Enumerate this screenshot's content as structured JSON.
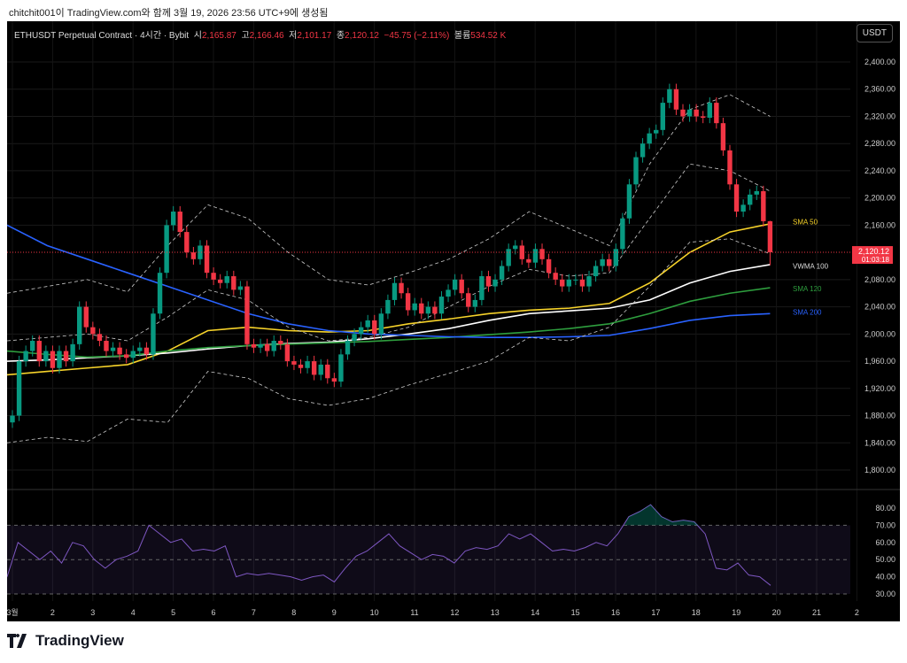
{
  "caption": "chitchit001이 TradingView.com와 함께 3월 19, 2026 23:56 UTC+9에 생성됨",
  "legend": {
    "symbol": "ETHUSDT Perpetual Contract · 4시간 · Bybit",
    "o_label": "시",
    "o": "2,165.87",
    "h_label": "고",
    "h": "2,166.46",
    "l_label": "저",
    "l": "2,101.17",
    "c_label": "종",
    "c": "2,120.12",
    "change": "−45.75 (−2.11%)",
    "vol_label": "볼륨",
    "vol": "534.52 K"
  },
  "currency_button": "USDT",
  "brand": "TradingView",
  "price_label": {
    "price": "2,120.12",
    "countdown": "01:03:18"
  },
  "colors": {
    "up": "#089981",
    "down": "#f23645",
    "sma50": "#f7d32a",
    "vwma100": "#ffffff",
    "sma120": "#2e9e3e",
    "sma200": "#2962ff",
    "bb": "#cccccc",
    "rsi": "#7e57c2"
  },
  "chart_data": [
    {
      "type": "candlestick",
      "interval": "4시간",
      "ylim": [
        1780,
        2420
      ],
      "y_ticks": [
        "2,400.00",
        "2,360.00",
        "2,320.00",
        "2,280.00",
        "2,240.00",
        "2,200.00",
        "2,160.00",
        "2,080.00",
        "2,040.00",
        "2,000.00",
        "1,960.00",
        "1,920.00",
        "1,880.00",
        "1,840.00",
        "1,800.00"
      ],
      "y_tick_values": [
        2400,
        2360,
        2320,
        2280,
        2240,
        2200,
        2160,
        2080,
        2040,
        2000,
        1960,
        1920,
        1880,
        1840,
        1800
      ],
      "x_ticks": [
        "3월",
        "2",
        "3",
        "4",
        "5",
        "6",
        "7",
        "8",
        "9",
        "10",
        "11",
        "12",
        "13",
        "14",
        "15",
        "16",
        "17",
        "18",
        "19",
        "20",
        "21",
        "2"
      ],
      "first_open": 1870,
      "closes": [
        1880,
        1960,
        1975,
        1990,
        1960,
        1975,
        1950,
        1975,
        1960,
        1985,
        2040,
        2010,
        2000,
        1990,
        1975,
        1980,
        1970,
        1965,
        1975,
        1980,
        1970,
        2030,
        2090,
        2160,
        2180,
        2150,
        2120,
        2110,
        2130,
        2090,
        2080,
        2075,
        2085,
        2065,
        2070,
        1985,
        1980,
        1985,
        1975,
        1990,
        1985,
        1960,
        1955,
        1950,
        1960,
        1940,
        1955,
        1935,
        1930,
        1970,
        1990,
        2000,
        2010,
        2020,
        2000,
        2030,
        2050,
        2075,
        2060,
        2035,
        2045,
        2030,
        2040,
        2030,
        2055,
        2065,
        2080,
        2060,
        2040,
        2050,
        2085,
        2070,
        2080,
        2100,
        2125,
        2130,
        2110,
        2105,
        2125,
        2110,
        2090,
        2080,
        2070,
        2080,
        2080,
        2070,
        2085,
        2100,
        2110,
        2100,
        2125,
        2170,
        2220,
        2260,
        2280,
        2295,
        2300,
        2340,
        2360,
        2330,
        2320,
        2330,
        2320,
        2318,
        2340,
        2310,
        2270,
        2220,
        2180,
        2190,
        2205,
        2210,
        2165.87,
        2120.12
      ],
      "last_candle": {
        "open": 2165.87,
        "high": 2166.46,
        "low": 2101.17,
        "close": 2120.12
      },
      "indicators": [
        {
          "name": "SMA 50",
          "color_key": "sma50",
          "daily": [
            1940,
            1945,
            1950,
            1955,
            1975,
            2005,
            2010,
            2005,
            2003,
            2005,
            2015,
            2022,
            2030,
            2035,
            2038,
            2045,
            2075,
            2120,
            2150,
            2162
          ]
        },
        {
          "name": "VWMA 100",
          "color_key": "vwma100",
          "daily": [
            1960,
            1962,
            1965,
            1968,
            1972,
            1978,
            1983,
            1986,
            1988,
            1993,
            2000,
            2008,
            2020,
            2030,
            2034,
            2038,
            2050,
            2075,
            2092,
            2102
          ]
        },
        {
          "name": "SMA 120",
          "color_key": "sma120",
          "daily": [
            1975,
            1970,
            1966,
            1968,
            1975,
            1980,
            1983,
            1985,
            1987,
            1989,
            1992,
            1995,
            1999,
            2003,
            2008,
            2015,
            2030,
            2048,
            2060,
            2068
          ]
        },
        {
          "name": "SMA 200",
          "color_key": "sma200",
          "daily": [
            2160,
            2130,
            2110,
            2090,
            2070,
            2050,
            2030,
            2015,
            2005,
            2000,
            1998,
            1996,
            1995,
            1995,
            1996,
            1998,
            2008,
            2020,
            2027,
            2030
          ]
        },
        {
          "name": "BB upper",
          "color_key": "bb",
          "dashed": true,
          "daily": [
            2060,
            2070,
            2080,
            2062,
            2130,
            2190,
            2170,
            2120,
            2080,
            2072,
            2090,
            2110,
            2140,
            2180,
            2155,
            2130,
            2250,
            2330,
            2352,
            2320
          ]
        },
        {
          "name": "BB basis",
          "color_key": "bb",
          "dashed": true,
          "daily": [
            1990,
            1995,
            2000,
            1990,
            2025,
            2065,
            2050,
            2010,
            1990,
            1995,
            2010,
            2040,
            2070,
            2095,
            2085,
            2090,
            2170,
            2250,
            2240,
            2210
          ]
        },
        {
          "name": "BB lower",
          "color_key": "bb",
          "dashed": true,
          "daily": [
            1840,
            1848,
            1842,
            1875,
            1870,
            1945,
            1935,
            1905,
            1895,
            1905,
            1925,
            1942,
            1960,
            1995,
            1990,
            2010,
            2070,
            2135,
            2140,
            2118
          ]
        }
      ]
    },
    {
      "type": "line",
      "name": "RSI",
      "ylim": [
        25,
        87
      ],
      "y_ticks": [
        "80.00",
        "70.00",
        "60.00",
        "50.00",
        "40.00",
        "30.00"
      ],
      "y_tick_values": [
        80,
        70,
        60,
        50,
        40,
        30
      ],
      "band": [
        30,
        70
      ],
      "values": [
        40,
        60,
        55,
        50,
        55,
        48,
        60,
        58,
        50,
        45,
        50,
        52,
        55,
        70,
        65,
        60,
        62,
        55,
        56,
        55,
        58,
        40,
        42,
        41,
        42,
        41,
        40,
        38,
        40,
        41,
        37,
        45,
        52,
        55,
        60,
        65,
        58,
        54,
        50,
        53,
        52,
        48,
        55,
        57,
        56,
        58,
        65,
        62,
        65,
        60,
        55,
        56,
        55,
        57,
        60,
        58,
        65,
        75,
        78,
        82,
        75,
        72,
        73,
        72,
        65,
        45,
        44,
        48,
        41,
        40,
        35
      ]
    }
  ]
}
